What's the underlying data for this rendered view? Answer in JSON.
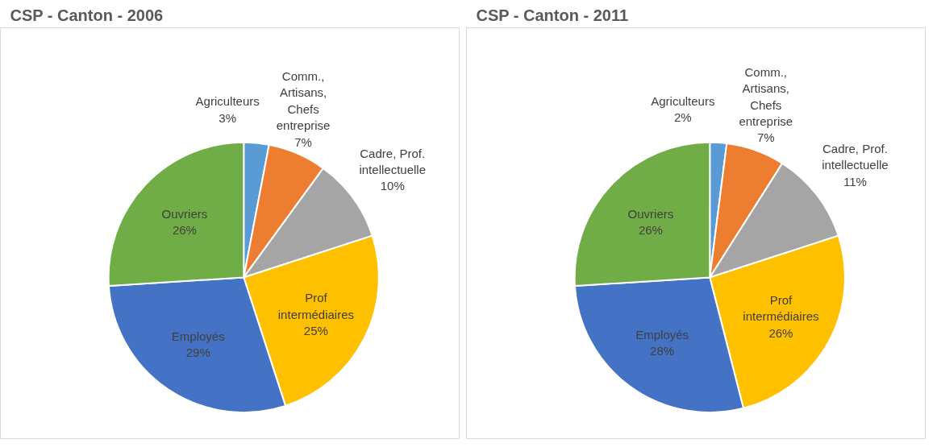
{
  "chart_data": [
    {
      "type": "pie",
      "title": "CSP - Canton - 2006",
      "categories": [
        "Agriculteurs",
        "Comm., Artisans, Chefs entreprise",
        "Cadre, Prof. intellectuelle",
        "Prof intermédiaires",
        "Employés",
        "Ouvriers"
      ],
      "values": [
        3,
        7,
        10,
        25,
        29,
        26
      ],
      "value_labels": [
        "3%",
        "7%",
        "10%",
        "25%",
        "29%",
        "26%"
      ],
      "colors": [
        "#5b9bd5",
        "#ed7d31",
        "#a5a5a5",
        "#ffc000",
        "#4472c4",
        "#70ad47"
      ]
    },
    {
      "type": "pie",
      "title": "CSP - Canton - 2011",
      "categories": [
        "Agriculteurs",
        "Comm., Artisans, Chefs entreprise",
        "Cadre, Prof. intellectuelle",
        "Prof intermédiaires",
        "Employés",
        "Ouvriers"
      ],
      "values": [
        2,
        7,
        11,
        26,
        28,
        26
      ],
      "value_labels": [
        "2%",
        "7%",
        "11%",
        "26%",
        "28%",
        "26%"
      ],
      "colors": [
        "#5b9bd5",
        "#ed7d31",
        "#a5a5a5",
        "#ffc000",
        "#4472c4",
        "#70ad47"
      ]
    }
  ]
}
